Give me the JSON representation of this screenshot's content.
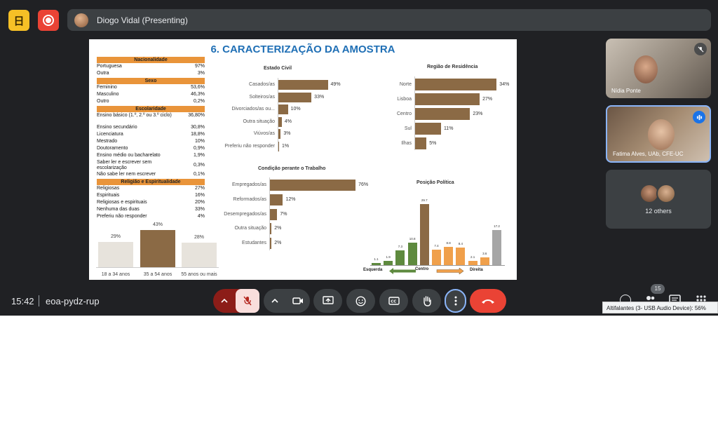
{
  "app": {
    "logo_letter": "日",
    "icons": {
      "logo": "app-logo-icon",
      "record": "record-icon"
    }
  },
  "presenter": {
    "name": "Diogo Vidal (Presenting)"
  },
  "slide": {
    "title": "6. CARACTERIZAÇÃO DA AMOSTRA",
    "table": {
      "sections": [
        {
          "title": "Nacionalidade",
          "rows": [
            [
              "Portuguesa",
              "97%"
            ],
            [
              "Outra",
              "3%"
            ]
          ]
        },
        {
          "title": "Sexo",
          "rows": [
            [
              "Feminino",
              "53,6%"
            ],
            [
              "Masculino",
              "46,3%"
            ],
            [
              "Outro",
              "0,2%"
            ]
          ]
        },
        {
          "title": "Escolaridade",
          "rows": [
            [
              "Ensino básico (1.º, 2.º ou 3.º ciclo)",
              "36,80%"
            ],
            [
              "Ensino secundário",
              "30,8%"
            ],
            [
              "Licenciatura",
              "18,8%"
            ],
            [
              "Mestrado",
              "10%"
            ],
            [
              "Doutoramento",
              "0,9%"
            ],
            [
              "Ensino médio ou bacharelato",
              "1,9%"
            ],
            [
              "Saber ler e escrever sem escolarização",
              "0,3%"
            ],
            [
              "Não sabe ler nem escrever",
              "0,1%"
            ]
          ]
        },
        {
          "title": "Religião e Espiritualidade",
          "rows": [
            [
              "Religiosas",
              "27%"
            ],
            [
              "Espirituais",
              "16%"
            ],
            [
              "Religiosas e espirituais",
              "20%"
            ],
            [
              "Nenhuma das duas",
              "33%"
            ],
            [
              "Preferiu não responder",
              "4%"
            ]
          ]
        }
      ]
    },
    "age_chart": {
      "categories": [
        "18 a 34 anos",
        "35 a 54 anos",
        "55 anos ou mais"
      ],
      "values": [
        29,
        43,
        28
      ],
      "labels": [
        "29%",
        "43%",
        "28%"
      ]
    },
    "estado_civil": {
      "title": "Estado Civil",
      "categories": [
        "Casados/as",
        "Solteiros/as",
        "Divorciados/as ou...",
        "Outra situação",
        "Viúvos/as",
        "Preferiu não responder"
      ],
      "values": [
        49,
        33,
        10,
        4,
        3,
        1
      ],
      "labels": [
        "49%",
        "33%",
        "10%",
        "4%",
        "3%",
        "1%"
      ]
    },
    "regiao": {
      "title": "Região de Residência",
      "categories": [
        "Norte",
        "Lisboa",
        "Centro",
        "Sul",
        "Ilhas"
      ],
      "values": [
        34,
        27,
        23,
        11,
        5
      ],
      "labels": [
        "34%",
        "27%",
        "23%",
        "11%",
        "5%"
      ]
    },
    "trabalho": {
      "title": "Condição perante o Trabalho",
      "categories": [
        "Empregados/as",
        "Reformados/as",
        "Desempregados/as",
        "Outra situação",
        "Estudantes"
      ],
      "values": [
        76,
        12,
        7,
        2,
        2
      ],
      "labels": [
        "76%",
        "12%",
        "7%",
        "2%",
        "2%"
      ]
    },
    "politica": {
      "title": "Posição Política",
      "values": [
        1.1,
        1.9,
        7.3,
        10.8,
        29.7,
        7.4,
        8.8,
        8.4,
        2.1,
        3.6,
        17.2
      ],
      "labels": [
        "1.1",
        "1.9",
        "7.3",
        "10.8",
        "29.7",
        "7.4",
        "8.8",
        "8.4",
        "2.1",
        "3.6",
        "17.2"
      ],
      "colors": [
        "#5e8a3e",
        "#5e8a3e",
        "#5e8a3e",
        "#5e8a3e",
        "#8b6a45",
        "#f0a04b",
        "#f0a04b",
        "#f0a04b",
        "#f0a04b",
        "#f0a04b",
        "#a6a6a6"
      ],
      "axis_labels": {
        "left": "Esquerda",
        "center": "Centro",
        "right": "Direita"
      }
    }
  },
  "participants": [
    {
      "name": "Nídia Ponte",
      "status": "muted"
    },
    {
      "name": "Fatima Alves, UAb, CFE-UC",
      "status": "speaking"
    }
  ],
  "others": {
    "label": "12 others"
  },
  "footer": {
    "time": "15:42",
    "meeting_code": "eoa-pydz-rup",
    "participant_count": "15"
  },
  "tooltip": "Altifalantes (3- USB Audio Device): 56%"
}
